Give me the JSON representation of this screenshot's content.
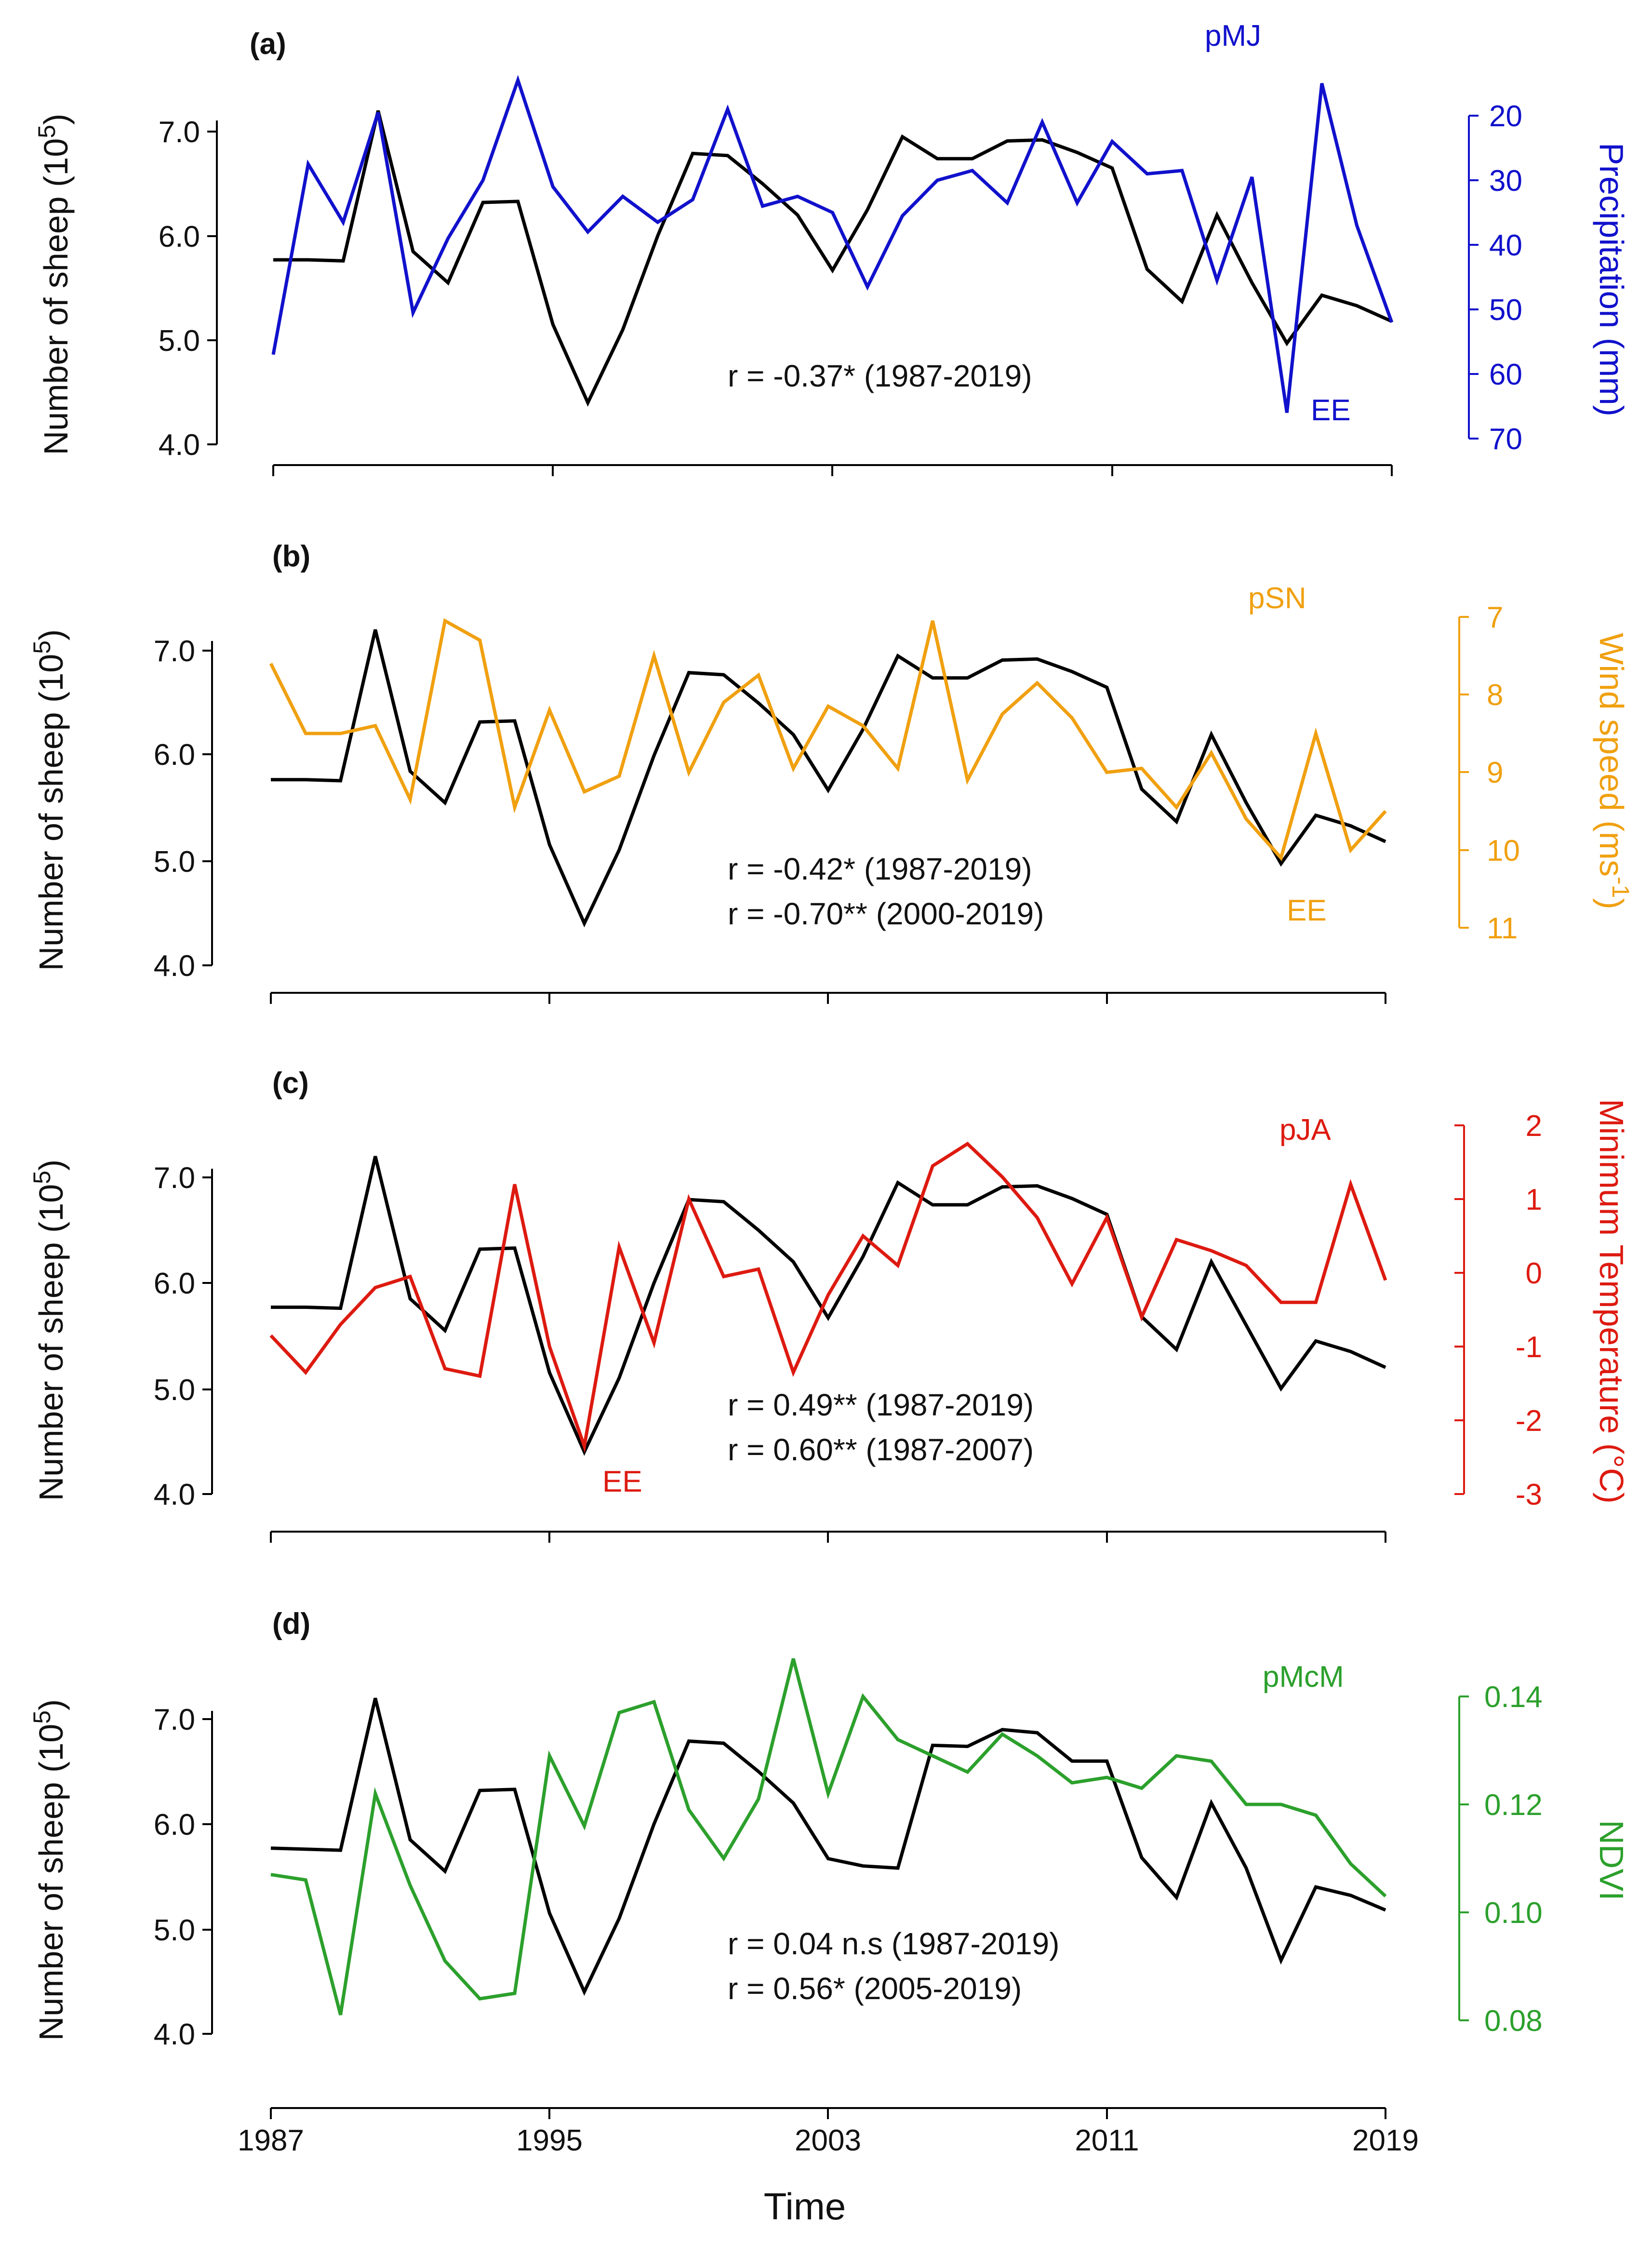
{
  "figure": {
    "x_title": "Time"
  },
  "colors": {
    "sheep": "#000000",
    "pMJ": "#1111cc",
    "pSN": "#f0a010",
    "pJA": "#dd1a10",
    "pMcM": "#2ca02c"
  },
  "chart_data": [
    {
      "type": "line",
      "panel_label": "(a)",
      "ylabel_main": "Number of sheep (10",
      "ylabel_exp": "5",
      "ylabel_tail": ")",
      "ylim": [
        4.0,
        7.0
      ],
      "y_ticks": [
        "4.0",
        "5.0",
        "6.0",
        "7.0"
      ],
      "secondary_label": "Precipitation (mm)",
      "secondary_ylim": [
        70,
        20
      ],
      "secondary_inverted": true,
      "secondary_ticks": [
        "70",
        "60",
        "50",
        "40",
        "30",
        "20"
      ],
      "series": [
        {
          "name": "Number of sheep",
          "axis": "left",
          "color": "#000000",
          "x": [
            1987,
            1988,
            1989,
            1990,
            1991,
            1992,
            1993,
            1994,
            1995,
            1996,
            1997,
            1998,
            1999,
            2000,
            2001,
            2002,
            2003,
            2004,
            2005,
            2006,
            2007,
            2008,
            2009,
            2010,
            2011,
            2012,
            2013,
            2014,
            2015,
            2016,
            2017,
            2018,
            2019
          ],
          "values": [
            5.77,
            5.77,
            5.76,
            7.2,
            5.85,
            5.55,
            6.32,
            6.33,
            5.15,
            4.4,
            5.1,
            6.0,
            6.79,
            6.77,
            6.5,
            6.2,
            5.67,
            6.25,
            6.95,
            6.74,
            6.74,
            6.91,
            6.92,
            6.8,
            6.65,
            5.68,
            5.37,
            6.2,
            5.55,
            4.97,
            5.43,
            5.33,
            5.18
          ]
        },
        {
          "name": "pMJ",
          "axis": "right",
          "color": "#1111cc",
          "x": [
            1987,
            1988,
            1989,
            1990,
            1991,
            1992,
            1993,
            1994,
            1995,
            1996,
            1997,
            1998,
            1999,
            2000,
            2001,
            2002,
            2003,
            2004,
            2005,
            2006,
            2007,
            2008,
            2009,
            2010,
            2011,
            2012,
            2013,
            2014,
            2015,
            2016,
            2017,
            2018,
            2019
          ],
          "values": [
            57,
            27.5,
            36.5,
            19.5,
            50.5,
            39,
            30,
            14.5,
            31,
            38,
            32.5,
            36.5,
            33,
            19,
            34,
            32.5,
            35,
            46.5,
            35.5,
            30,
            28.5,
            33.5,
            21,
            33.5,
            24,
            29,
            28.5,
            45.5,
            29.5,
            66,
            15,
            37,
            52
          ]
        }
      ],
      "annotations": [
        "pMJ",
        "EE"
      ],
      "correlations": [
        "r = -0.37* (1987-2019)"
      ]
    },
    {
      "type": "line",
      "panel_label": "(b)",
      "ylabel_main": "Number of sheep (10",
      "ylabel_exp": "5",
      "ylabel_tail": ")",
      "ylim": [
        4.0,
        7.0
      ],
      "y_ticks": [
        "4.0",
        "5.0",
        "6.0",
        "7.0"
      ],
      "secondary_label": "Wind speed (ms",
      "secondary_label_exp": "-1",
      "secondary_label_tail": ")",
      "secondary_ylim": [
        11,
        7
      ],
      "secondary_inverted": true,
      "secondary_ticks": [
        "11",
        "10",
        "9",
        "8",
        "7"
      ],
      "series": [
        {
          "name": "Number of sheep",
          "axis": "left",
          "color": "#000000",
          "x": [
            1987,
            1988,
            1989,
            1990,
            1991,
            1992,
            1993,
            1994,
            1995,
            1996,
            1997,
            1998,
            1999,
            2000,
            2001,
            2002,
            2003,
            2004,
            2005,
            2006,
            2007,
            2008,
            2009,
            2010,
            2011,
            2012,
            2013,
            2014,
            2015,
            2016,
            2017,
            2018,
            2019
          ],
          "values": [
            5.77,
            5.77,
            5.76,
            7.2,
            5.85,
            5.55,
            6.32,
            6.33,
            5.15,
            4.4,
            5.1,
            6.0,
            6.79,
            6.77,
            6.5,
            6.2,
            5.67,
            6.25,
            6.95,
            6.74,
            6.74,
            6.91,
            6.92,
            6.8,
            6.65,
            5.68,
            5.37,
            6.2,
            5.55,
            4.97,
            5.43,
            5.33,
            5.18
          ]
        },
        {
          "name": "pSN",
          "axis": "right",
          "color": "#f0a010",
          "x": [
            1987,
            1988,
            1989,
            1990,
            1991,
            1992,
            1993,
            1994,
            1995,
            1996,
            1997,
            1998,
            1999,
            2000,
            2001,
            2002,
            2003,
            2004,
            2005,
            2006,
            2007,
            2008,
            2009,
            2010,
            2011,
            2012,
            2013,
            2014,
            2015,
            2016,
            2017,
            2018,
            2019
          ],
          "values": [
            7.6,
            8.5,
            8.5,
            8.4,
            9.35,
            7.05,
            7.3,
            9.45,
            8.2,
            9.25,
            9.05,
            7.5,
            9.0,
            8.1,
            7.75,
            8.95,
            8.15,
            8.4,
            8.95,
            7.05,
            9.1,
            8.25,
            7.85,
            8.3,
            9.0,
            8.95,
            9.45,
            8.75,
            9.6,
            10.1,
            8.5,
            10.0,
            9.5
          ]
        }
      ],
      "annotations": [
        "pSN",
        "EE"
      ],
      "correlations": [
        "r = -0.42* (1987-2019)",
        "r = -0.70** (2000-2019)"
      ]
    },
    {
      "type": "line",
      "panel_label": "(c)",
      "ylabel_main": "Number of sheep (10",
      "ylabel_exp": "5",
      "ylabel_tail": ")",
      "ylim": [
        4.0,
        7.0
      ],
      "y_ticks": [
        "4.0",
        "5.0",
        "6.0",
        "7.0"
      ],
      "secondary_label": "Minimum Temperature (°C)",
      "secondary_ylim": [
        -3,
        2
      ],
      "secondary_inverted": false,
      "secondary_ticks": [
        "-3",
        "-2",
        "-1",
        "0",
        "1",
        "2"
      ],
      "series": [
        {
          "name": "Number of sheep",
          "axis": "left",
          "color": "#000000",
          "x": [
            1987,
            1988,
            1989,
            1990,
            1991,
            1992,
            1993,
            1994,
            1995,
            1996,
            1997,
            1998,
            1999,
            2000,
            2001,
            2002,
            2003,
            2004,
            2005,
            2006,
            2007,
            2008,
            2009,
            2010,
            2011,
            2012,
            2013,
            2014,
            2015,
            2016,
            2017,
            2018,
            2019
          ],
          "values": [
            5.77,
            5.77,
            5.76,
            7.2,
            5.85,
            5.55,
            6.32,
            6.33,
            5.15,
            4.4,
            5.1,
            6.0,
            6.79,
            6.77,
            6.5,
            6.2,
            5.67,
            6.25,
            6.95,
            6.74,
            6.74,
            6.91,
            6.92,
            6.8,
            6.65,
            5.68,
            5.37,
            6.2,
            5.6,
            5.0,
            5.45,
            5.35,
            5.2
          ]
        },
        {
          "name": "pJA",
          "axis": "right",
          "color": "#dd1a10",
          "x": [
            1987,
            1988,
            1989,
            1990,
            1991,
            1992,
            1993,
            1994,
            1995,
            1996,
            1997,
            1998,
            1999,
            2000,
            2001,
            2002,
            2003,
            2004,
            2005,
            2006,
            2007,
            2008,
            2009,
            2010,
            2011,
            2012,
            2013,
            2014,
            2015,
            2016,
            2017,
            2018,
            2019
          ],
          "values": [
            -0.85,
            -1.35,
            -0.7,
            -0.2,
            -0.05,
            -1.3,
            -1.4,
            1.2,
            -1.0,
            -2.35,
            0.35,
            -0.95,
            1.0,
            -0.05,
            0.05,
            -1.35,
            -0.3,
            0.5,
            0.1,
            1.45,
            1.75,
            1.3,
            0.75,
            -0.15,
            0.75,
            -0.6,
            0.45,
            0.3,
            0.1,
            -0.4,
            -0.4,
            1.2,
            -0.1
          ]
        }
      ],
      "annotations": [
        "pJA",
        "EE"
      ],
      "correlations": [
        "r = 0.49** (1987-2019)",
        "r = 0.60** (1987-2007)"
      ]
    },
    {
      "type": "line",
      "panel_label": "(d)",
      "ylabel_main": "Number of sheep (10",
      "ylabel_exp": "5",
      "ylabel_tail": ")",
      "ylim": [
        4.0,
        7.0
      ],
      "y_ticks": [
        "4.0",
        "5.0",
        "6.0",
        "7.0"
      ],
      "secondary_label": "NDVI",
      "secondary_ylim": [
        0.08,
        0.14
      ],
      "secondary_inverted": false,
      "secondary_ticks": [
        "0.08",
        "0.10",
        "0.12",
        "0.14"
      ],
      "series": [
        {
          "name": "Number of sheep",
          "axis": "left",
          "color": "#000000",
          "x": [
            1987,
            1988,
            1989,
            1990,
            1991,
            1992,
            1993,
            1994,
            1995,
            1996,
            1997,
            1998,
            1999,
            2000,
            2001,
            2002,
            2003,
            2004,
            2005,
            2006,
            2007,
            2008,
            2009,
            2010,
            2011,
            2012,
            2013,
            2014,
            2015,
            2016,
            2017,
            2018,
            2019
          ],
          "values": [
            5.77,
            5.76,
            5.75,
            7.2,
            5.85,
            5.55,
            6.32,
            6.33,
            5.15,
            4.4,
            5.1,
            6.0,
            6.79,
            6.77,
            6.5,
            6.2,
            5.67,
            5.6,
            5.58,
            6.75,
            6.74,
            6.9,
            6.87,
            6.6,
            6.6,
            5.68,
            5.3,
            6.2,
            5.58,
            4.7,
            5.4,
            5.32,
            5.18
          ]
        },
        {
          "name": "pMcM",
          "axis": "right",
          "color": "#2ca02c",
          "x": [
            1987,
            1988,
            1989,
            1990,
            1991,
            1992,
            1993,
            1994,
            1995,
            1996,
            1997,
            1998,
            1999,
            2000,
            2001,
            2002,
            2003,
            2004,
            2005,
            2006,
            2007,
            2008,
            2009,
            2010,
            2011,
            2012,
            2013,
            2014,
            2015,
            2016,
            2017,
            2018,
            2019
          ],
          "values": [
            0.107,
            0.106,
            0.081,
            0.122,
            0.105,
            0.091,
            0.084,
            0.085,
            0.129,
            0.116,
            0.137,
            0.139,
            0.119,
            0.11,
            0.121,
            0.147,
            0.122,
            0.14,
            0.132,
            0.129,
            0.126,
            0.133,
            0.129,
            0.124,
            0.125,
            0.123,
            0.129,
            0.128,
            0.12,
            0.12,
            0.118,
            0.109,
            0.103
          ]
        }
      ],
      "annotations": [
        "pMcM"
      ],
      "correlations": [
        "r = 0.04 n.s (1987-2019)",
        "r = 0.56* (2005-2019)"
      ]
    }
  ],
  "x_axis": {
    "range": [
      1987,
      2019
    ],
    "ticks": [
      1987,
      1995,
      2003,
      2011,
      2019
    ],
    "labels": [
      "1987",
      "1995",
      "2003",
      "2011",
      "2019"
    ]
  }
}
